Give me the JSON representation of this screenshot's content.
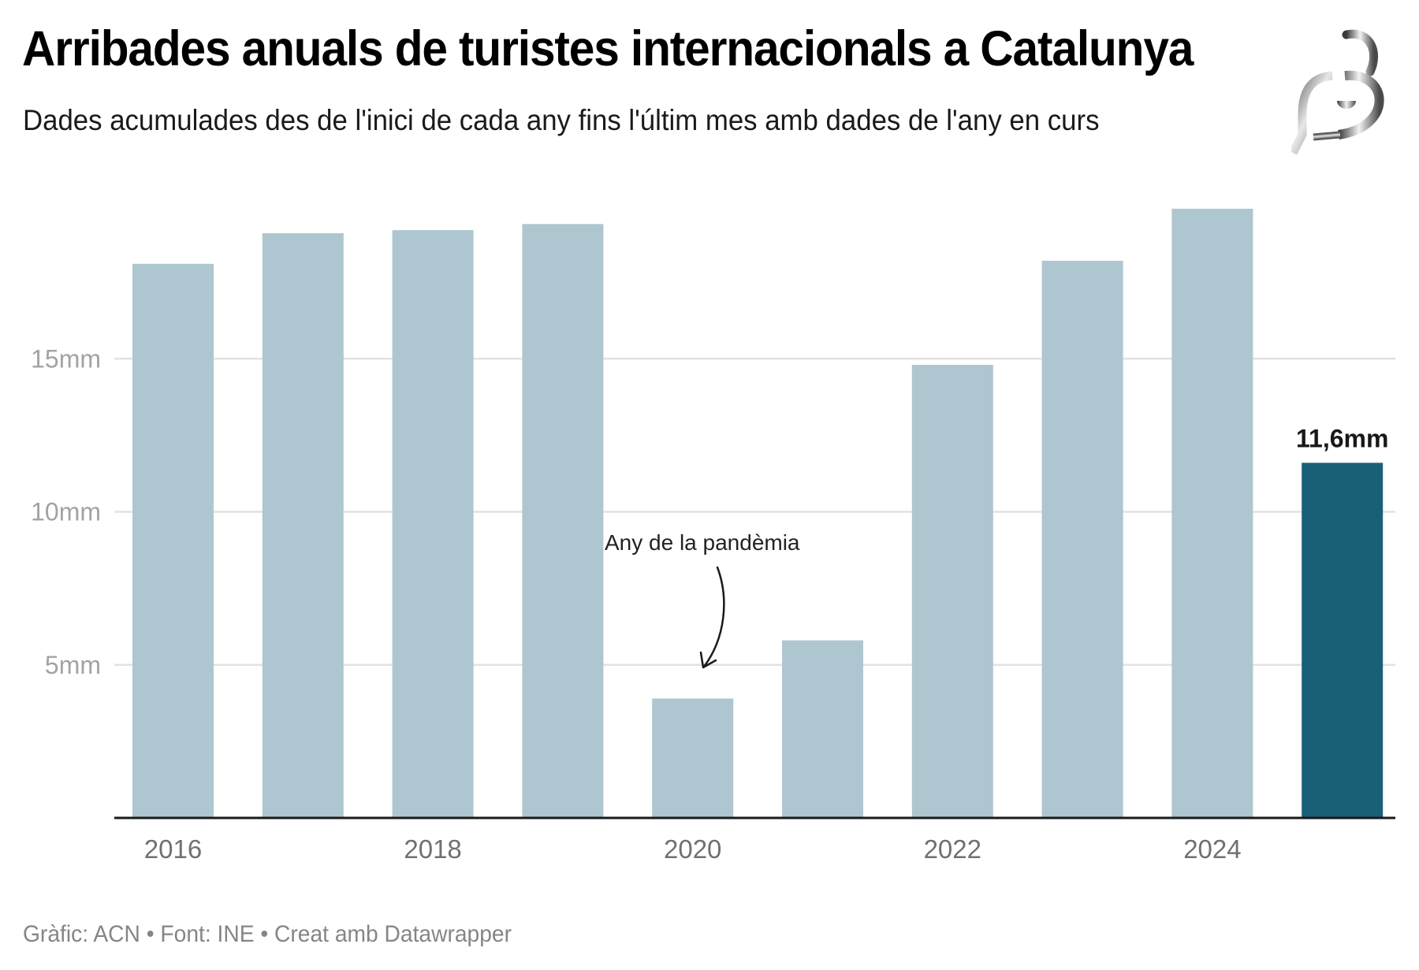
{
  "header": {
    "title": "Arribades anuals de turistes internacionals a Catalunya",
    "subtitle": "Dades acumulades des de l'inici de cada any fins l'últim mes amb dades de l'any en curs"
  },
  "logo": {
    "icon": "brand-logo-icon"
  },
  "footer": {
    "text": "Gràfic: ACN • Font: INE • Creat amb Datawrapper"
  },
  "colors": {
    "bar": "#aec6cf",
    "highlight": "#1a5f78",
    "grid": "#e2e2e2",
    "axis": "#1a1a1a"
  },
  "chart_data": {
    "type": "bar",
    "title": "Arribades anuals de turistes internacionals a Catalunya",
    "subtitle": "Dades acumulades des de l'inici de cada any fins l'últim mes amb dades de l'any en curs",
    "xlabel": "",
    "ylabel": "",
    "categories": [
      "2016",
      "2017",
      "2018",
      "2019",
      "2020",
      "2021",
      "2022",
      "2023",
      "2024",
      "2025"
    ],
    "values": [
      18.1,
      19.1,
      19.2,
      19.4,
      3.9,
      5.8,
      14.8,
      18.2,
      19.9,
      11.6
    ],
    "unit": "milions",
    "ylim": [
      0,
      20
    ],
    "yticks": [
      {
        "value": 5,
        "label": "5mm"
      },
      {
        "value": 10,
        "label": "10mm"
      },
      {
        "value": 15,
        "label": "15mm"
      }
    ],
    "xtick_labels": [
      "2016",
      "2018",
      "2020",
      "2022",
      "2024"
    ],
    "highlight_index": 9,
    "value_labels": [
      {
        "index": 9,
        "label": "11,6mm"
      }
    ],
    "annotations": [
      {
        "text": "Any de la pandèmia",
        "target": "2020"
      }
    ],
    "grid": true,
    "legend": "none"
  }
}
